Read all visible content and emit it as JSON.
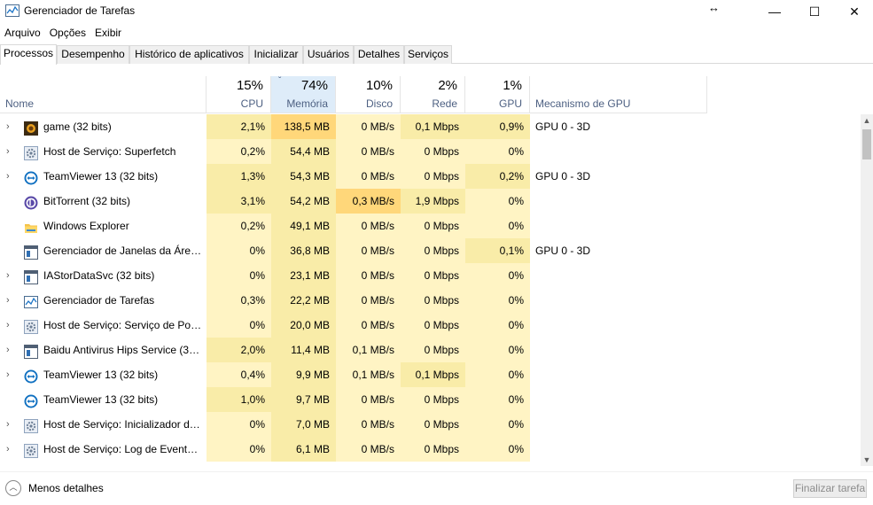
{
  "window": {
    "title": "Gerenciador de Tarefas",
    "resize_glyph": "↔",
    "min_glyph": "—",
    "max_glyph": "☐",
    "close_glyph": "✕"
  },
  "menu": [
    "Arquivo",
    "Opções",
    "Exibir"
  ],
  "tabs": [
    "Processos",
    "Desempenho",
    "Histórico de aplicativos",
    "Inicializar",
    "Usuários",
    "Detalhes",
    "Serviços"
  ],
  "active_tab": "Processos",
  "columns": {
    "name": {
      "label": "Nome"
    },
    "cpu": {
      "pct": "15%",
      "label": "CPU"
    },
    "mem": {
      "pct": "74%",
      "label": "Memória",
      "sort_glyph": "ˇ"
    },
    "disk": {
      "pct": "10%",
      "label": "Disco"
    },
    "net": {
      "pct": "2%",
      "label": "Rede"
    },
    "gpu": {
      "pct": "1%",
      "label": "GPU"
    },
    "gpuengine": {
      "label": "Mecanismo de GPU"
    }
  },
  "colors": {
    "heat_low": "#fff4c4",
    "heat_mid": "#f9eca8",
    "heat_high": "#ffd77a",
    "sort_header": "#deecf9"
  },
  "processes": [
    {
      "expand": "›",
      "icon": "game-icon",
      "name": "game (32 bits)",
      "cpu": "2,1%",
      "mem": "138,5 MB",
      "disk": "0 MB/s",
      "net": "0,1 Mbps",
      "gpu": "0,9%",
      "engine": "GPU 0 - 3D"
    },
    {
      "expand": "›",
      "icon": "gear-icon",
      "name": "Host de Serviço: Superfetch",
      "cpu": "0,2%",
      "mem": "54,4 MB",
      "disk": "0 MB/s",
      "net": "0 Mbps",
      "gpu": "0%",
      "engine": ""
    },
    {
      "expand": "›",
      "icon": "teamviewer-icon",
      "name": "TeamViewer 13 (32 bits)",
      "cpu": "1,3%",
      "mem": "54,3 MB",
      "disk": "0 MB/s",
      "net": "0 Mbps",
      "gpu": "0,2%",
      "engine": "GPU 0 - 3D"
    },
    {
      "expand": "",
      "icon": "bittorrent-icon",
      "name": "BitTorrent (32 bits)",
      "cpu": "3,1%",
      "mem": "54,2 MB",
      "disk": "0,3 MB/s",
      "net": "1,9 Mbps",
      "gpu": "0%",
      "engine": ""
    },
    {
      "expand": "",
      "icon": "folder-icon",
      "name": "Windows Explorer",
      "cpu": "0,2%",
      "mem": "49,1 MB",
      "disk": "0 MB/s",
      "net": "0 Mbps",
      "gpu": "0%",
      "engine": ""
    },
    {
      "expand": "",
      "icon": "window-icon",
      "name": "Gerenciador de Janelas da Área ...",
      "cpu": "0%",
      "mem": "36,8 MB",
      "disk": "0 MB/s",
      "net": "0 Mbps",
      "gpu": "0,1%",
      "engine": "GPU 0 - 3D"
    },
    {
      "expand": "›",
      "icon": "window-icon",
      "name": "IAStorDataSvc (32 bits)",
      "cpu": "0%",
      "mem": "23,1 MB",
      "disk": "0 MB/s",
      "net": "0 Mbps",
      "gpu": "0%",
      "engine": ""
    },
    {
      "expand": "›",
      "icon": "taskmgr-icon",
      "name": "Gerenciador de Tarefas",
      "cpu": "0,3%",
      "mem": "22,2 MB",
      "disk": "0 MB/s",
      "net": "0 Mbps",
      "gpu": "0%",
      "engine": ""
    },
    {
      "expand": "›",
      "icon": "gear-icon",
      "name": "Host de Serviço: Serviço de Polí...",
      "cpu": "0%",
      "mem": "20,0 MB",
      "disk": "0 MB/s",
      "net": "0 Mbps",
      "gpu": "0%",
      "engine": ""
    },
    {
      "expand": "›",
      "icon": "window-icon",
      "name": "Baidu Antivirus Hips Service (32...",
      "cpu": "2,0%",
      "mem": "11,4 MB",
      "disk": "0,1 MB/s",
      "net": "0 Mbps",
      "gpu": "0%",
      "engine": ""
    },
    {
      "expand": "›",
      "icon": "teamviewer-icon",
      "name": "TeamViewer 13 (32 bits)",
      "cpu": "0,4%",
      "mem": "9,9 MB",
      "disk": "0,1 MB/s",
      "net": "0,1 Mbps",
      "gpu": "0%",
      "engine": ""
    },
    {
      "expand": "",
      "icon": "teamviewer-icon",
      "name": "TeamViewer 13 (32 bits)",
      "cpu": "1,0%",
      "mem": "9,7 MB",
      "disk": "0 MB/s",
      "net": "0 Mbps",
      "gpu": "0%",
      "engine": ""
    },
    {
      "expand": "›",
      "icon": "gear-icon",
      "name": "Host de Serviço: Inicializador de...",
      "cpu": "0%",
      "mem": "7,0 MB",
      "disk": "0 MB/s",
      "net": "0 Mbps",
      "gpu": "0%",
      "engine": ""
    },
    {
      "expand": "›",
      "icon": "gear-icon",
      "name": "Host de Serviço: Log de Eventos...",
      "cpu": "0%",
      "mem": "6,1 MB",
      "disk": "0 MB/s",
      "net": "0 Mbps",
      "gpu": "0%",
      "engine": ""
    }
  ],
  "scrollbar": {
    "up": "▲",
    "down": "▼"
  },
  "footer": {
    "less_details_glyph": "︿",
    "less_details": "Menos detalhes",
    "end_task": "Finalizar tarefa"
  }
}
